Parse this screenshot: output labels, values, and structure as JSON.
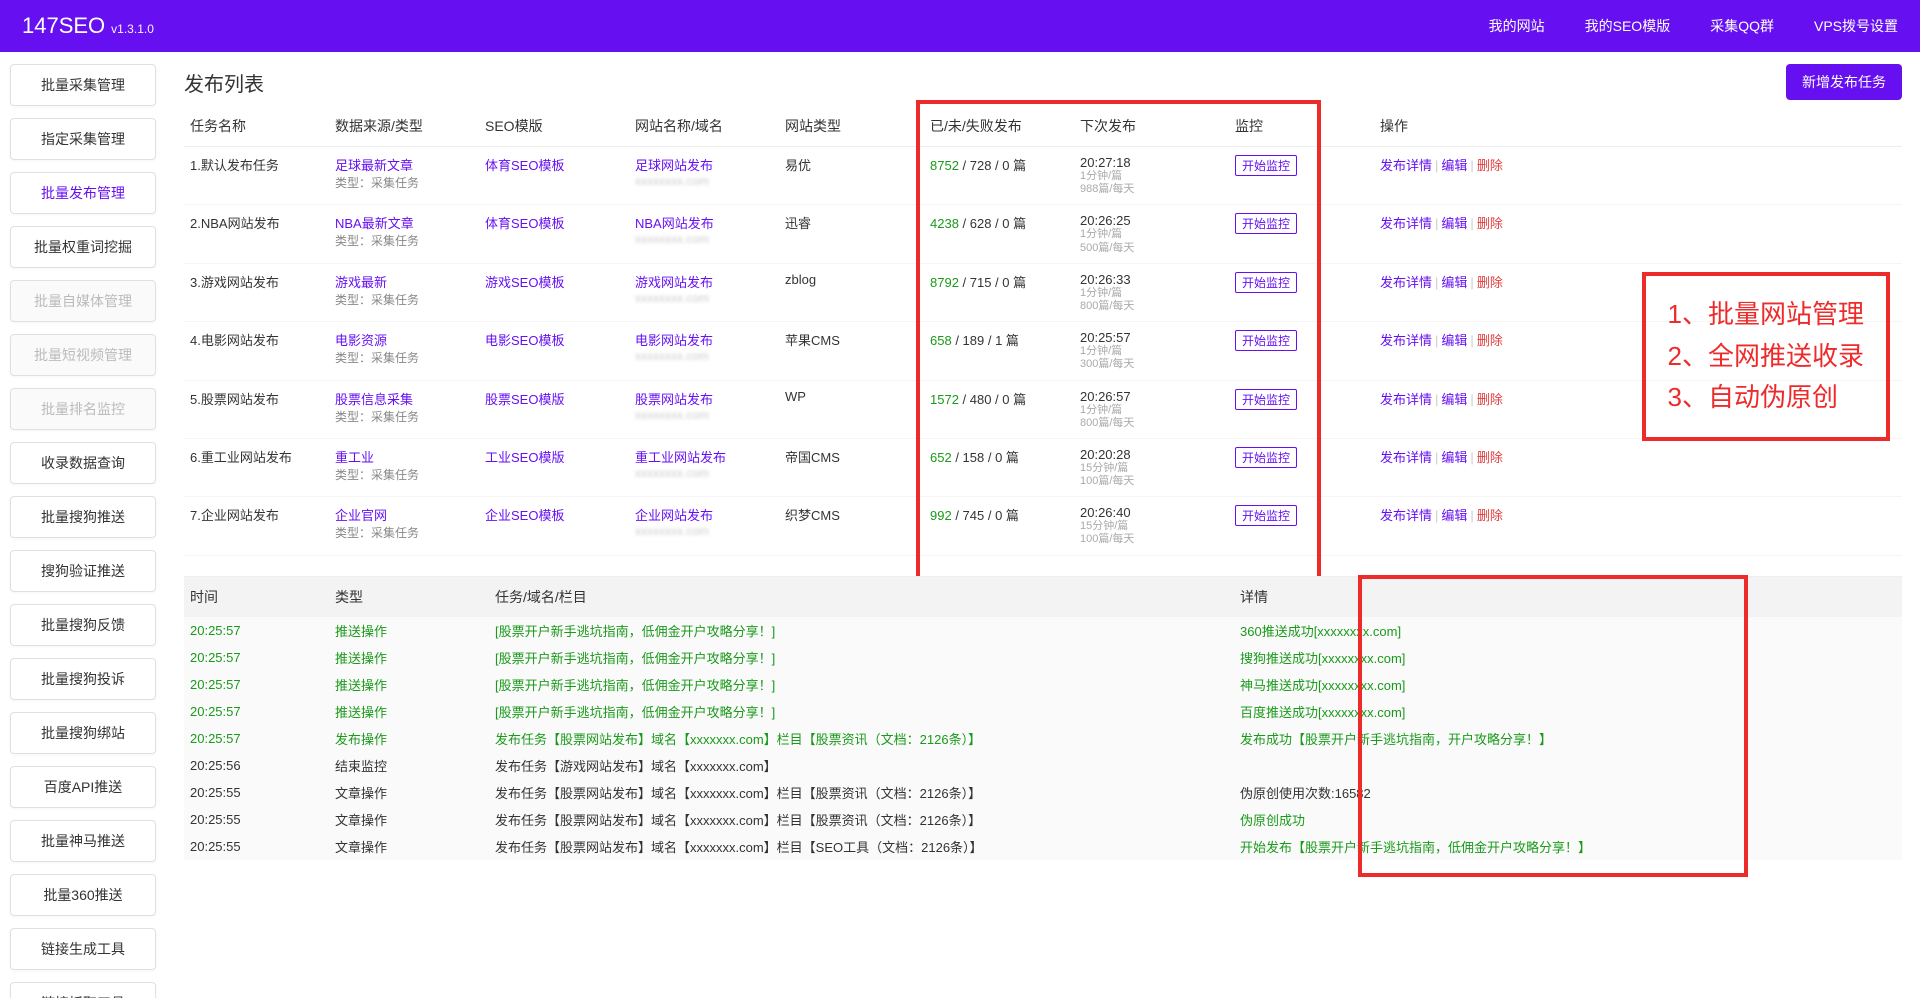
{
  "app": {
    "name": "147SEO",
    "version": "v1.3.1.0"
  },
  "nav": [
    {
      "label": "我的网站"
    },
    {
      "label": "我的SEO模版"
    },
    {
      "label": "采集QQ群"
    },
    {
      "label": "VPS拨号设置"
    }
  ],
  "sidebar": [
    {
      "label": "批量采集管理",
      "state": "normal"
    },
    {
      "label": "指定采集管理",
      "state": "normal"
    },
    {
      "label": "批量发布管理",
      "state": "active"
    },
    {
      "label": "批量权重词挖掘",
      "state": "normal"
    },
    {
      "label": "批量自媒体管理",
      "state": "disabled"
    },
    {
      "label": "批量短视频管理",
      "state": "disabled"
    },
    {
      "label": "批量排名监控",
      "state": "disabled"
    },
    {
      "label": "收录数据查询",
      "state": "normal"
    },
    {
      "label": "批量搜狗推送",
      "state": "normal"
    },
    {
      "label": "搜狗验证推送",
      "state": "normal"
    },
    {
      "label": "批量搜狗反馈",
      "state": "normal"
    },
    {
      "label": "批量搜狗投诉",
      "state": "normal"
    },
    {
      "label": "批量搜狗绑站",
      "state": "normal"
    },
    {
      "label": "百度API推送",
      "state": "normal"
    },
    {
      "label": "批量神马推送",
      "state": "normal"
    },
    {
      "label": "批量360推送",
      "state": "normal"
    },
    {
      "label": "链接生成工具",
      "state": "normal"
    },
    {
      "label": "链接抓取工具",
      "state": "normal"
    }
  ],
  "page": {
    "title": "发布列表",
    "addBtn": "新增发布任务"
  },
  "columns": {
    "name": "任务名称",
    "src": "数据来源/类型",
    "tpl": "SEO模版",
    "site": "网站名称/域名",
    "type": "网站类型",
    "pub": "已/未/失败发布",
    "next": "下次发布",
    "mon": "监控",
    "ops": "操作"
  },
  "opsLabels": {
    "detail": "发布详情",
    "edit": "编辑",
    "del": "删除"
  },
  "monLabel": "开始监控",
  "srcSub": "类型：采集任务",
  "tasks": [
    {
      "name": "1.默认发布任务",
      "src": "足球最新文章",
      "tpl": "体育SEO模板",
      "site": "足球网站发布",
      "dom": "xxxxxxxx.com",
      "type": "易优",
      "p1": "8752",
      "p2": "728",
      "p3": "0",
      "unit": "篇",
      "next": "20:27:18",
      "s1": "1分钟/篇",
      "s2": "988篇/每天"
    },
    {
      "name": "2.NBA网站发布",
      "src": "NBA最新文章",
      "tpl": "体育SEO模板",
      "site": "NBA网站发布",
      "dom": "xxxxxxxx.com",
      "type": "迅睿",
      "p1": "4238",
      "p2": "628",
      "p3": "0",
      "unit": "篇",
      "next": "20:26:25",
      "s1": "1分钟/篇",
      "s2": "500篇/每天"
    },
    {
      "name": "3.游戏网站发布",
      "src": "游戏最新",
      "tpl": "游戏SEO模板",
      "site": "游戏网站发布",
      "dom": "xxxxxxxx.com",
      "type": "zblog",
      "p1": "8792",
      "p2": "715",
      "p3": "0",
      "unit": "篇",
      "next": "20:26:33",
      "s1": "1分钟/篇",
      "s2": "800篇/每天"
    },
    {
      "name": "4.电影网站发布",
      "src": "电影资源",
      "tpl": "电影SEO模板",
      "site": "电影网站发布",
      "dom": "xxxxxxxx.com",
      "type": "苹果CMS",
      "p1": "658",
      "p2": "189",
      "p3": "1",
      "unit": "篇",
      "next": "20:25:57",
      "s1": "1分钟/篇",
      "s2": "300篇/每天"
    },
    {
      "name": "5.股票网站发布",
      "src": "股票信息采集",
      "tpl": "股票SEO模版",
      "site": "股票网站发布",
      "dom": "xxxxxxxx.com",
      "type": "WP",
      "p1": "1572",
      "p2": "480",
      "p3": "0",
      "unit": "篇",
      "next": "20:26:57",
      "s1": "1分钟/篇",
      "s2": "800篇/每天"
    },
    {
      "name": "6.重工业网站发布",
      "src": "重工业",
      "tpl": "工业SEO模版",
      "site": "重工业网站发布",
      "dom": "xxxxxxxx.com",
      "type": "帝国CMS",
      "p1": "652",
      "p2": "158",
      "p3": "0",
      "unit": "篇",
      "next": "20:20:28",
      "s1": "15分钟/篇",
      "s2": "100篇/每天"
    },
    {
      "name": "7.企业网站发布",
      "src": "企业官网",
      "tpl": "企业SEO模板",
      "site": "企业网站发布",
      "dom": "xxxxxxxx.com",
      "type": "织梦CMS",
      "p1": "992",
      "p2": "745",
      "p3": "0",
      "unit": "篇",
      "next": "20:26:40",
      "s1": "15分钟/篇",
      "s2": "100篇/每天"
    }
  ],
  "note": [
    "1、批量网站管理",
    "2、全网推送收录",
    "3、自动伪原创"
  ],
  "logCols": {
    "time": "时间",
    "type": "类型",
    "task": "任务/域名/栏目",
    "detail": "详情"
  },
  "logs": [
    {
      "time": "20:25:57",
      "type": "推送操作",
      "task": "[股票开户新手逃坑指南，低佣金开户攻略分享！]",
      "detail": "360推送成功[xxxxxxxx.com]",
      "g": true,
      "gd": true
    },
    {
      "time": "20:25:57",
      "type": "推送操作",
      "task": "[股票开户新手逃坑指南，低佣金开户攻略分享！]",
      "detail": "搜狗推送成功[xxxxxxxx.com]",
      "g": true,
      "gd": true
    },
    {
      "time": "20:25:57",
      "type": "推送操作",
      "task": "[股票开户新手逃坑指南，低佣金开户攻略分享！]",
      "detail": "神马推送成功[xxxxxxxx.com]",
      "g": true,
      "gd": true
    },
    {
      "time": "20:25:57",
      "type": "推送操作",
      "task": "[股票开户新手逃坑指南，低佣金开户攻略分享！]",
      "detail": "百度推送成功[xxxxxxxx.com]",
      "g": true,
      "gd": true
    },
    {
      "time": "20:25:57",
      "type": "发布操作",
      "task": "发布任务【股票网站发布】域名【xxxxxxx.com】栏目【股票资讯（文档：2126条）】",
      "detail": "发布成功【股票开户新手逃坑指南，开户攻略分享！】",
      "g": true,
      "gd": true
    },
    {
      "time": "20:25:56",
      "type": "结束监控",
      "task": "发布任务【游戏网站发布】域名【xxxxxxx.com】",
      "detail": "",
      "g": false,
      "gd": false
    },
    {
      "time": "20:25:55",
      "type": "文章操作",
      "task": "发布任务【股票网站发布】域名【xxxxxxx.com】栏目【股票资讯（文档：2126条）】",
      "detail": "伪原创使用次数:16582",
      "g": false,
      "gd": false
    },
    {
      "time": "20:25:55",
      "type": "文章操作",
      "task": "发布任务【股票网站发布】域名【xxxxxxx.com】栏目【股票资讯（文档：2126条）】",
      "detail": "伪原创成功",
      "g": false,
      "gd": true
    },
    {
      "time": "20:25:55",
      "type": "文章操作",
      "task": "发布任务【股票网站发布】域名【xxxxxxx.com】栏目【SEO工具（文档：2126条）】",
      "detail": "开始发布【股票开户新手逃坑指南，低佣金开户攻略分享！】",
      "g": false,
      "gd": true
    }
  ],
  "colors": {
    "accent": "#6610f2",
    "red": "#ee2b2b",
    "green": "#1a9a1a"
  }
}
